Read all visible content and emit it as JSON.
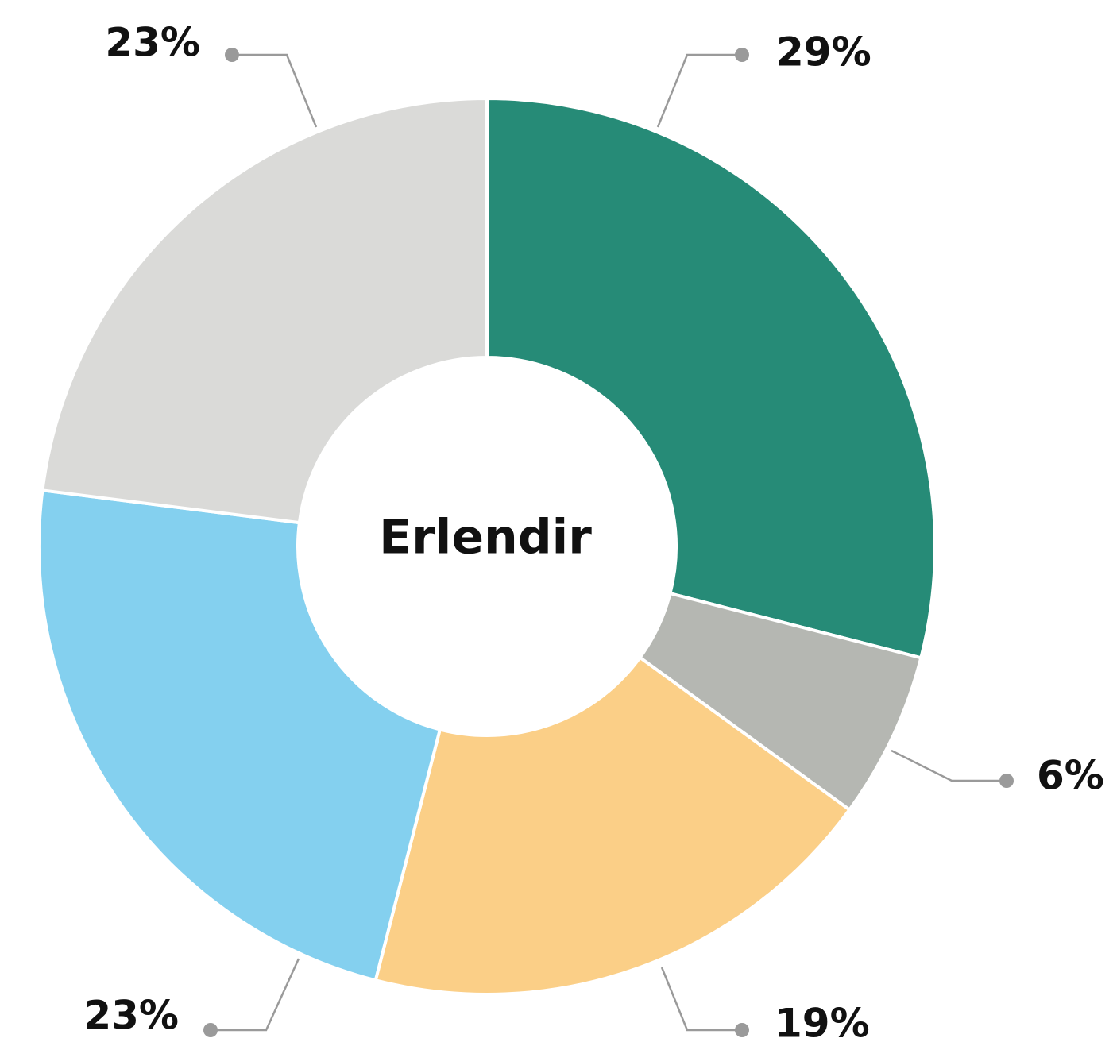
{
  "chart_data": {
    "type": "donut",
    "center_label": "Erlendir",
    "values": [
      29,
      6,
      19,
      23,
      23
    ],
    "value_labels": [
      "29%",
      "6%",
      "19%",
      "23%",
      "23%"
    ],
    "colors": [
      "#268b77",
      "#b5b7b2",
      "#fbcf87",
      "#84d0ef",
      "#dadad8"
    ]
  }
}
